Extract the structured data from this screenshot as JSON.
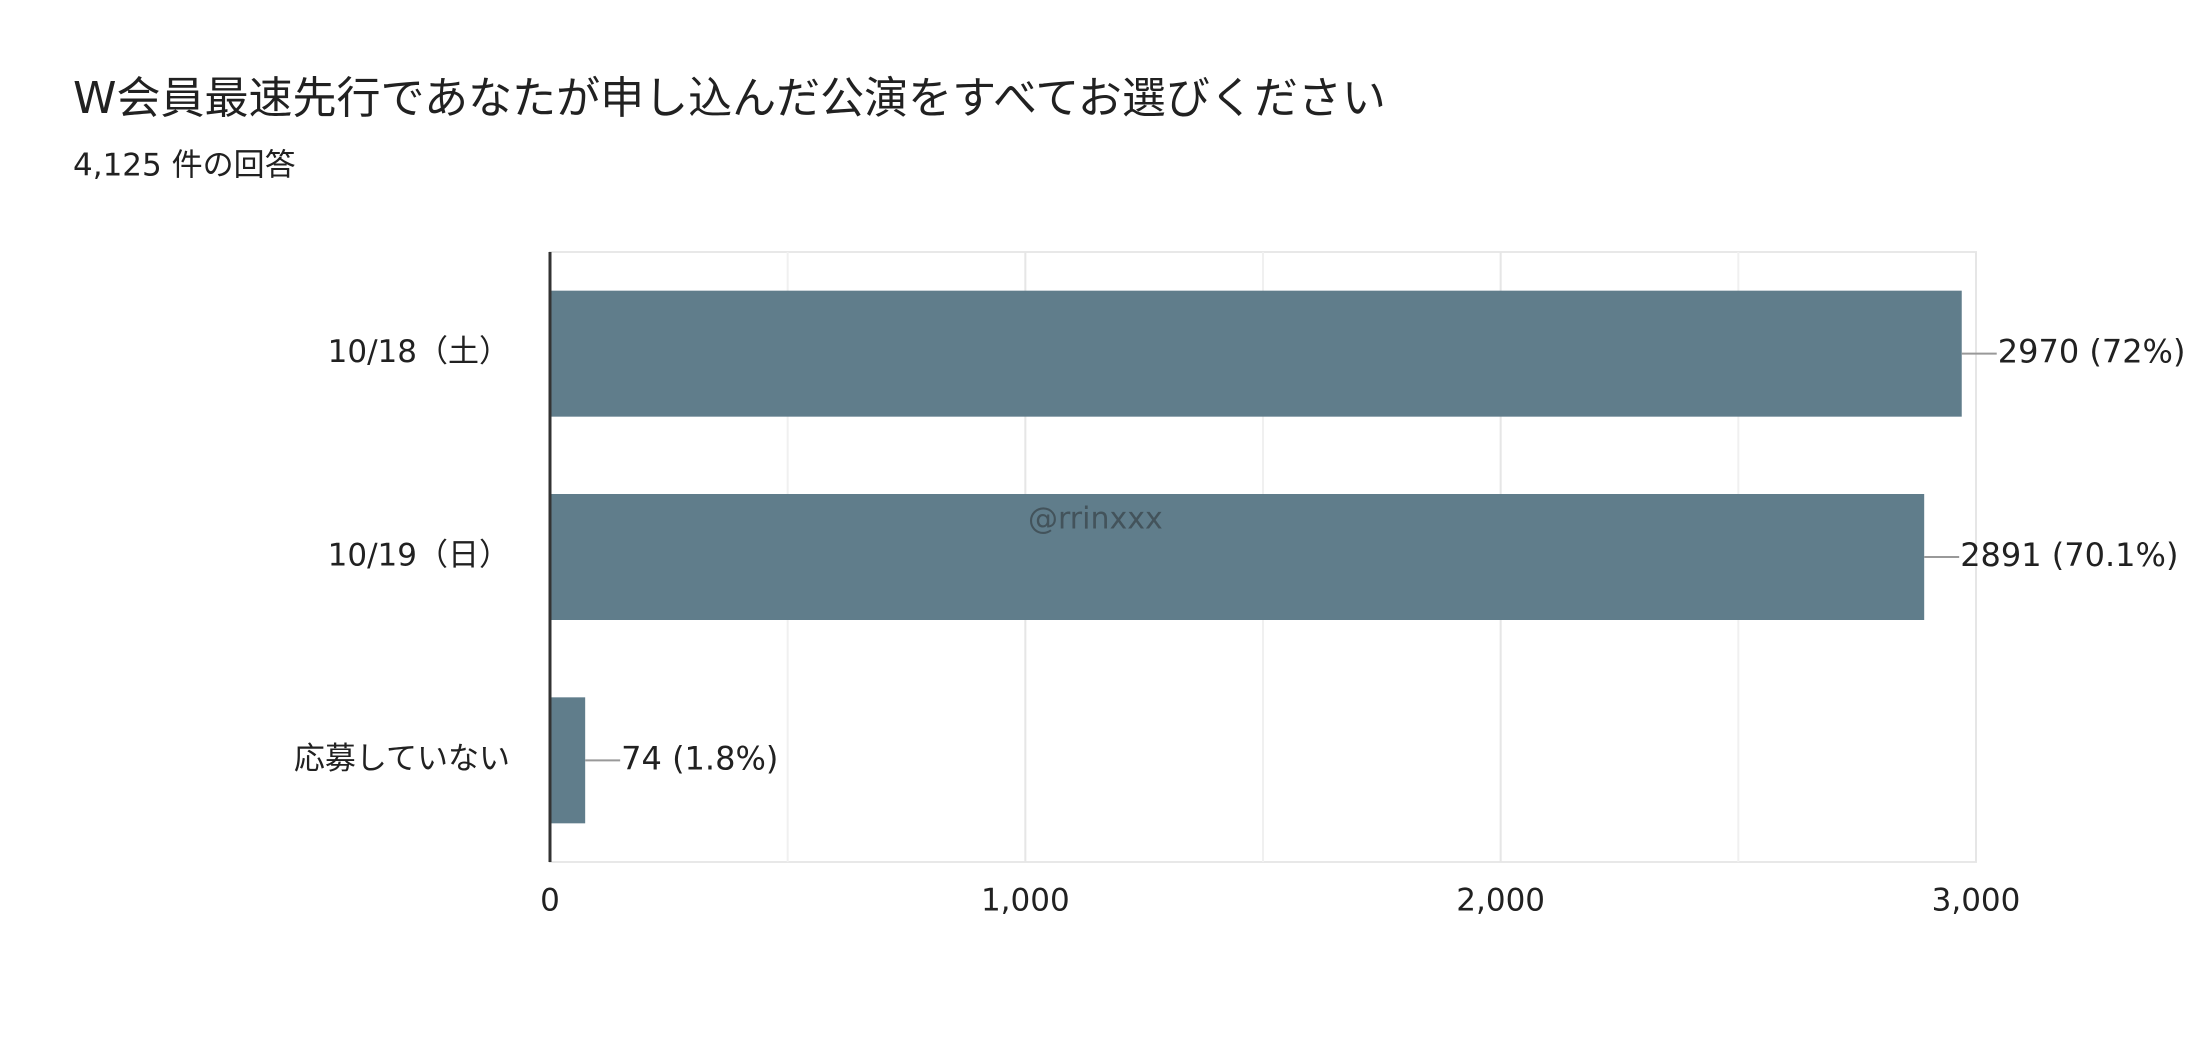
{
  "chart_data": {
    "type": "bar",
    "orientation": "horizontal",
    "title": "W会員最速先行であなたが申し込んだ公演をすべてお選びください",
    "subtitle": "4,125 件の回答",
    "watermark": "@rrinxxx",
    "categories": [
      "10/18（土）",
      "10/19（日）",
      "応募していない"
    ],
    "values": [
      2970,
      2891,
      74
    ],
    "value_labels": [
      "2970 (72%)",
      "2891 (70.1%)",
      "74 (1.8%)"
    ],
    "color": "#607d8b",
    "xlim": [
      0,
      3000
    ],
    "xticks": [
      0,
      {
        "value": 1000,
        "label": "1,000"
      },
      {
        "value": 2000,
        "label": "2,000"
      },
      {
        "value": 3000,
        "label": "3,000"
      }
    ],
    "minor_xticks": [
      500,
      1500,
      2500
    ],
    "grid": true
  }
}
